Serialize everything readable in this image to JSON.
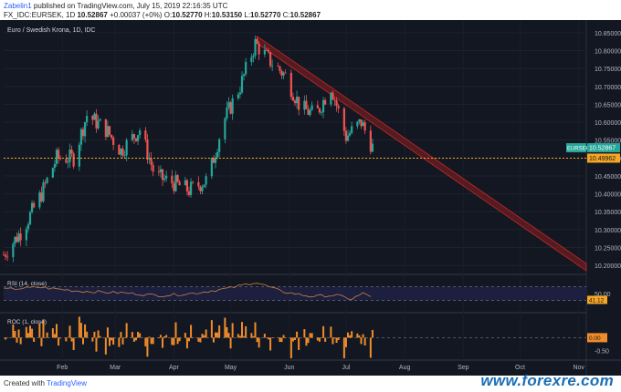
{
  "header": {
    "author": "Zabelin1",
    "published_text": "published on TradingView.com, July 15, 2019 22:16:35 UTC",
    "symbol_line": "FX_IDC:EURSEK, 1D",
    "last": "10.52867",
    "change": "+0.00037 (+0%)",
    "o_label": "O:",
    "o_value": "10.52770",
    "h_label": "H:",
    "h_value": "10.53150",
    "l_label": "L:",
    "l_value": "10.52770",
    "c_label": "C:",
    "c_value": "10.52867"
  },
  "footer": {
    "created_with": "Created with",
    "tradingview": "TradingView",
    "site": "www.forexre.com"
  },
  "colors": {
    "background": "#131722",
    "up": "#26a69a",
    "down": "#ef5350",
    "support": "#f5a623",
    "channel": "#8b1f1f",
    "rsi_line": "#c8834a",
    "roc_bar": "#f08c2a"
  },
  "chart_data": [
    {
      "type": "candlestick",
      "title": "Euro / Swedish Krona, 1D, IDC",
      "x_labels": [
        "Feb",
        "Mar",
        "Apr",
        "May",
        "Jun",
        "Jul",
        "Aug",
        "Sep",
        "Oct",
        "Nov"
      ],
      "x_range": [
        "2019-01-01",
        "2019-11-05"
      ],
      "ylim": [
        10.18,
        10.87
      ],
      "y_ticks": [
        "10.85000",
        "10.80000",
        "10.75000",
        "10.70000",
        "10.65000",
        "10.60000",
        "10.55000",
        "10.50000",
        "10.45000",
        "10.40000",
        "10.35000",
        "10.30000",
        "10.25000",
        "10.20000"
      ],
      "monthly_path": [
        [
          "2019-01-01",
          10.23
        ],
        [
          "2019-01-11",
          10.3
        ],
        [
          "2019-01-21",
          10.4
        ],
        [
          "2019-01-29",
          10.5
        ],
        [
          "2019-02-07",
          10.5
        ],
        [
          "2019-02-14",
          10.62
        ],
        [
          "2019-02-24",
          10.58
        ],
        [
          "2019-03-04",
          10.52
        ],
        [
          "2019-03-14",
          10.58
        ],
        [
          "2019-03-22",
          10.45
        ],
        [
          "2019-04-01",
          10.43
        ],
        [
          "2019-04-09",
          10.41
        ],
        [
          "2019-04-19",
          10.44
        ],
        [
          "2019-04-27",
          10.6
        ],
        [
          "2019-05-06",
          10.7
        ],
        [
          "2019-05-14",
          10.82
        ],
        [
          "2019-05-22",
          10.77
        ],
        [
          "2019-05-30",
          10.73
        ],
        [
          "2019-06-07",
          10.64
        ],
        [
          "2019-06-15",
          10.62
        ],
        [
          "2019-06-23",
          10.7
        ],
        [
          "2019-07-01",
          10.56
        ],
        [
          "2019-07-09",
          10.6
        ],
        [
          "2019-07-15",
          10.53
        ]
      ],
      "last_price_label": "EURSEK",
      "last_price": "10.52867",
      "support_level": 10.49962,
      "support_label": "10.49962",
      "channel": {
        "start_date": "2019-05-15",
        "end_date": "2019-11-05",
        "upper_start": 10.84,
        "upper_end": 10.205,
        "lower_start": 10.82,
        "lower_end": 10.185
      }
    },
    {
      "type": "line",
      "title": "RSI (14, close)",
      "ylim": [
        0,
        100
      ],
      "levels": [
        70,
        30
      ],
      "last_value": "41.12",
      "path": [
        [
          "2019-01-01",
          62
        ],
        [
          "2019-01-20",
          68
        ],
        [
          "2019-02-10",
          57
        ],
        [
          "2019-03-05",
          52
        ],
        [
          "2019-03-25",
          44
        ],
        [
          "2019-04-12",
          51
        ],
        [
          "2019-05-01",
          66
        ],
        [
          "2019-05-14",
          83
        ],
        [
          "2019-05-28",
          56
        ],
        [
          "2019-06-12",
          42
        ],
        [
          "2019-06-26",
          45
        ],
        [
          "2019-07-04",
          34
        ],
        [
          "2019-07-10",
          50
        ],
        [
          "2019-07-15",
          41
        ]
      ],
      "tick_label": "50.00"
    },
    {
      "type": "bar",
      "title": "ROC (1, close)",
      "ylim": [
        -0.8,
        0.9
      ],
      "last_value": "0.00",
      "tick_label": "-0.50"
    }
  ]
}
